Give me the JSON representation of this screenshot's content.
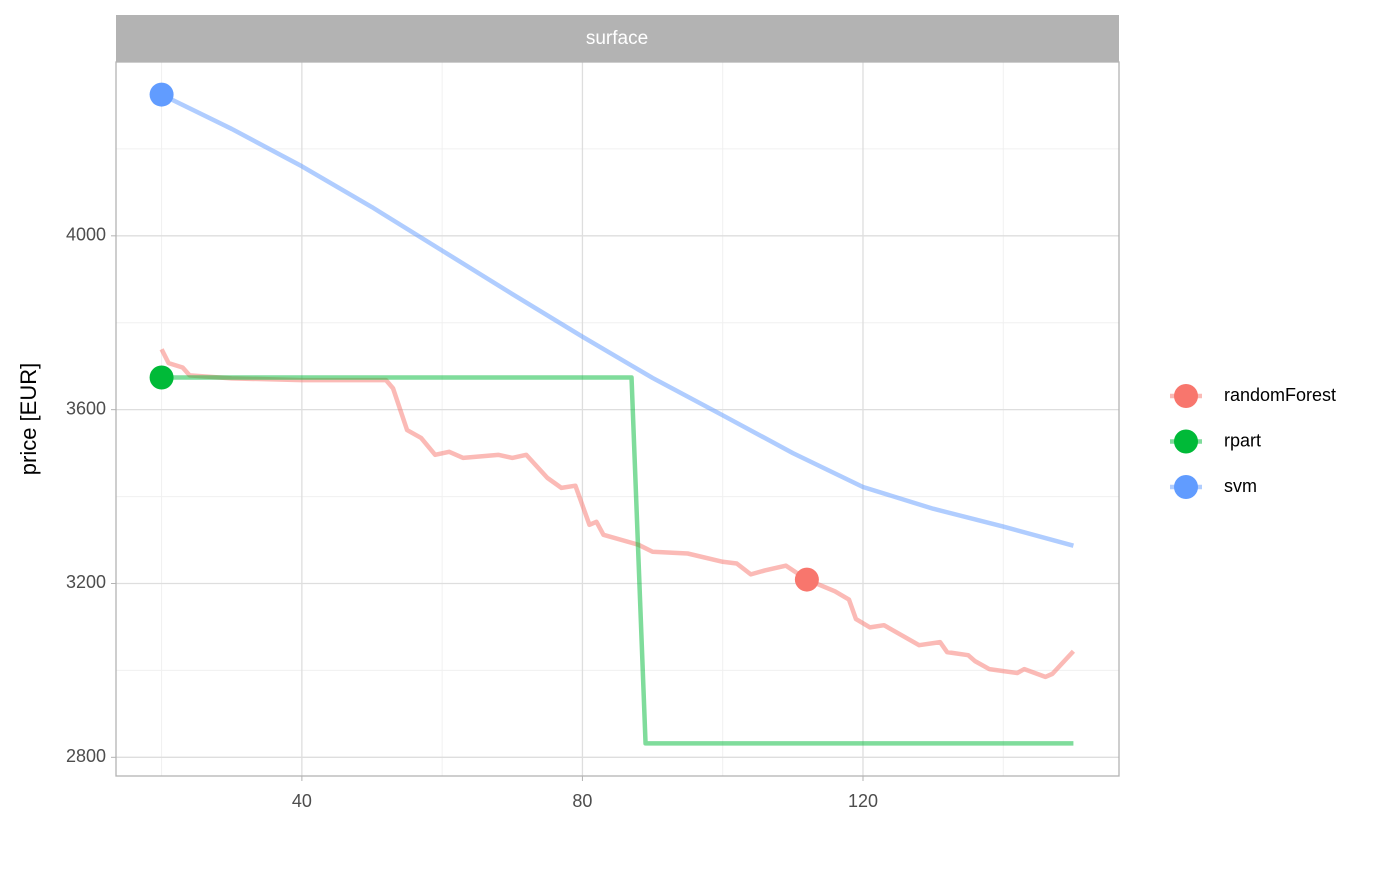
{
  "chart_data": {
    "type": "line",
    "strip_label": "surface",
    "y_label": "price [EUR]",
    "xlim": [
      13.5,
      156.5
    ],
    "xticks": [
      40,
      80,
      120
    ],
    "x_minor_ticks": [
      20,
      60,
      100,
      140
    ],
    "ylim": [
      2757,
      4400
    ],
    "yticks": [
      2800,
      3200,
      3600,
      4000
    ],
    "y_minor_ticks": [
      3000,
      3400,
      3800,
      4200
    ],
    "grid": true,
    "legend": "right",
    "series": [
      {
        "name": "randomForest",
        "color": "#F8766D",
        "x": [
          20,
          21,
          23,
          24,
          30,
          40,
          50,
          52,
          53,
          55,
          57,
          59,
          61,
          63,
          68,
          70,
          72,
          75,
          77,
          79,
          81,
          82,
          83,
          88,
          90,
          95,
          100,
          102,
          104,
          106,
          109,
          112,
          116,
          118,
          119,
          121,
          123,
          128,
          131,
          132,
          135,
          136,
          138,
          142,
          143,
          146,
          147,
          150
        ],
        "values": [
          3739,
          3707,
          3697,
          3679,
          3672,
          3668,
          3668,
          3668,
          3649,
          3553,
          3535,
          3496,
          3503,
          3489,
          3496,
          3489,
          3496,
          3443,
          3420,
          3425,
          3335,
          3342,
          3312,
          3289,
          3273,
          3269,
          3250,
          3246,
          3221,
          3230,
          3241,
          3209,
          3182,
          3163,
          3118,
          3099,
          3104,
          3058,
          3065,
          3042,
          3035,
          3021,
          3003,
          2994,
          3003,
          2985,
          2992,
          3044
        ],
        "point_x": 112,
        "point_y": 3209
      },
      {
        "name": "rpart",
        "color": "#00BA38",
        "x": [
          20,
          87,
          89,
          150
        ],
        "values": [
          3674,
          3674,
          2832,
          2832
        ],
        "point_x": 20,
        "point_y": 3674
      },
      {
        "name": "svm",
        "color": "#619CFF",
        "x": [
          20,
          30,
          40,
          50,
          60,
          70,
          80,
          90,
          100,
          110,
          120,
          130,
          140,
          150
        ],
        "values": [
          4325,
          4246,
          4160,
          4066,
          3966,
          3866,
          3768,
          3673,
          3587,
          3500,
          3422,
          3372,
          3331,
          3287
        ],
        "point_x": 20,
        "point_y": 4325
      }
    ]
  }
}
